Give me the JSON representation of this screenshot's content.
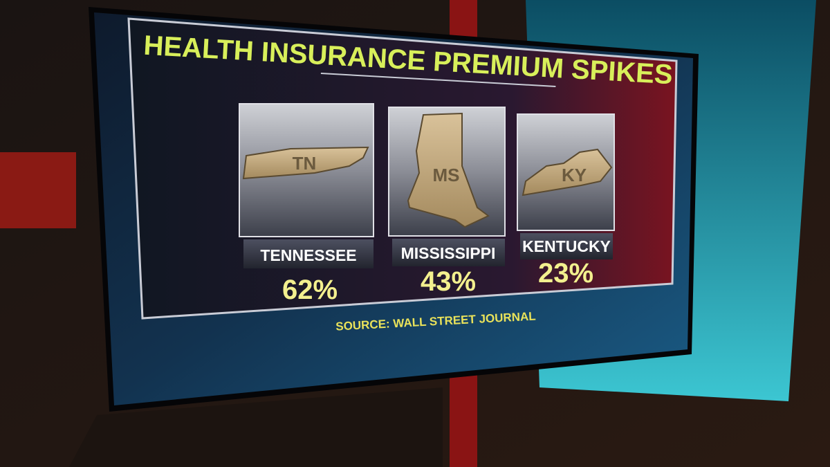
{
  "screen": {
    "title": "HEALTH INSURANCE PREMIUM SPIKES",
    "states": [
      {
        "abbr": "TN",
        "name": "TENNESSEE",
        "value": "62%"
      },
      {
        "abbr": "MS",
        "name": "MISSISSIPPI",
        "value": "43%"
      },
      {
        "abbr": "KY",
        "name": "KENTUCKY",
        "value": "23%"
      }
    ],
    "source": "SOURCE: WALL STREET JOURNAL"
  }
}
